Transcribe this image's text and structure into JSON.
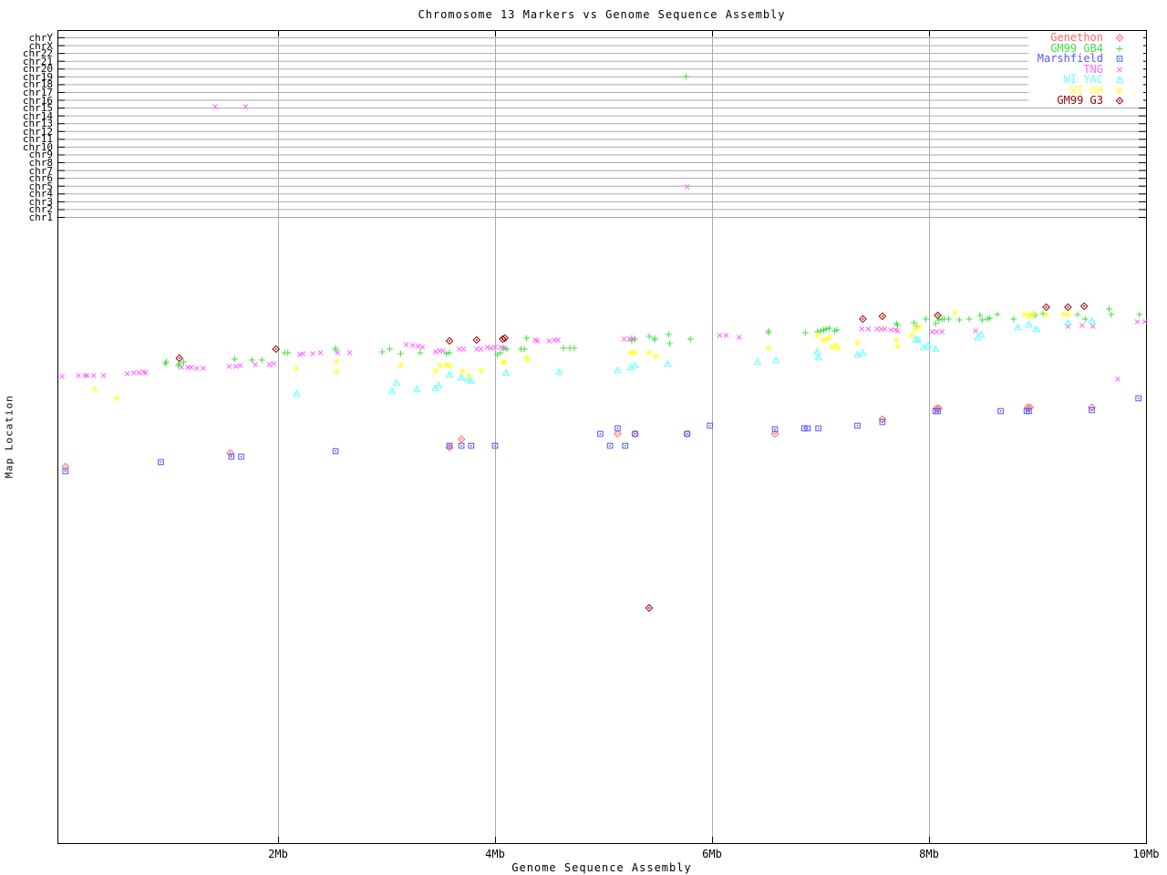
{
  "title": "Chromosome 13 Markers vs Genome Sequence Assembly",
  "x_axis": {
    "title": "Genome Sequence Assembly",
    "tick_labels": [
      "2Mb",
      "4Mb",
      "6Mb",
      "8Mb",
      "10Mb"
    ],
    "tick_positions_mb": [
      2,
      4,
      6,
      8,
      10
    ],
    "gridlines_mb": [
      2,
      4,
      6,
      8
    ],
    "range_mb": [
      0,
      10
    ]
  },
  "y_axis": {
    "title": "Map Location",
    "chromosome_rows": [
      "chrY",
      "chrX",
      "chr22",
      "chr21",
      "chr20",
      "chr19",
      "chr18",
      "chr17",
      "chr16",
      "chr15",
      "chr14",
      "chr13",
      "chr12",
      "chr11",
      "chr10",
      "chr9",
      "chr8",
      "chr7",
      "chr6",
      "chr5",
      "chr4",
      "chr3",
      "chr2",
      "chr1"
    ]
  },
  "colors": {
    "background": "#ffffff",
    "grid": "#aaaaaa",
    "axis": "#000000"
  },
  "chart_data": {
    "type": "scatter",
    "title": "Chromosome 13 Markers vs Genome Sequence Assembly",
    "xlabel": "Genome Sequence Assembly",
    "ylabel": "Map Location",
    "x_units": "Mb",
    "y_units": "vertical pixel row of 960px canvas; rows 41-238 are the chromosome band (chrY..chr1), lower band has no numeric scale printed",
    "xlim_mb": [
      0,
      10
    ],
    "grid": "on",
    "legend_position": "top-right-inside",
    "series": [
      {
        "name": "Genethon",
        "key": "genethon",
        "marker": "open-diamond-dot",
        "color": "#ff6666",
        "points": [
          [
            0.04,
            512
          ],
          [
            1.56,
            497
          ],
          [
            3.58,
            491
          ],
          [
            3.69,
            482
          ],
          [
            5.13,
            476
          ],
          [
            5.29,
            476
          ],
          [
            5.77,
            476
          ],
          [
            6.58,
            476
          ],
          [
            7.57,
            460
          ],
          [
            8.07,
            448
          ],
          [
            8.09,
            448
          ],
          [
            8.91,
            447
          ],
          [
            8.93,
            447
          ],
          [
            9.5,
            447
          ]
        ]
      },
      {
        "name": "GM99 GB4",
        "key": "gm99-gb4",
        "marker": "plus",
        "color": "#44dd44",
        "points": [
          [
            0.96,
            399
          ],
          [
            0.97,
            397
          ],
          [
            1.08,
            401
          ],
          [
            1.09,
            399
          ],
          [
            1.13,
            397
          ],
          [
            1.6,
            394
          ],
          [
            1.76,
            395
          ],
          [
            1.85,
            395
          ],
          [
            2.06,
            387
          ],
          [
            2.09,
            387
          ],
          [
            2.53,
            382
          ],
          [
            2.53,
            384
          ],
          [
            2.96,
            386
          ],
          [
            3.03,
            383
          ],
          [
            3.13,
            388
          ],
          [
            3.31,
            387
          ],
          [
            3.55,
            388
          ],
          [
            3.58,
            387
          ],
          [
            4.02,
            389
          ],
          [
            4.05,
            387
          ],
          [
            4.08,
            382
          ],
          [
            4.11,
            383
          ],
          [
            4.24,
            383
          ],
          [
            4.27,
            383
          ],
          [
            4.29,
            371
          ],
          [
            4.63,
            382
          ],
          [
            4.69,
            382
          ],
          [
            4.73,
            382
          ],
          [
            5.26,
            371
          ],
          [
            5.26,
            374
          ],
          [
            5.29,
            372
          ],
          [
            5.42,
            369
          ],
          [
            5.47,
            371
          ],
          [
            5.47,
            373
          ],
          [
            5.6,
            367
          ],
          [
            5.61,
            377
          ],
          [
            5.76,
            84
          ],
          [
            5.8,
            372
          ],
          [
            6.52,
            363
          ],
          [
            6.52,
            365
          ],
          [
            6.86,
            365
          ],
          [
            6.97,
            364
          ],
          [
            7.0,
            363
          ],
          [
            7.03,
            362
          ],
          [
            7.05,
            361
          ],
          [
            7.08,
            360
          ],
          [
            7.13,
            363
          ],
          [
            7.15,
            362
          ],
          [
            7.7,
            355
          ],
          [
            7.71,
            357
          ],
          [
            7.86,
            354
          ],
          [
            7.89,
            358
          ],
          [
            7.97,
            350
          ],
          [
            8.06,
            355
          ],
          [
            8.09,
            351
          ],
          [
            8.12,
            350
          ],
          [
            8.14,
            350
          ],
          [
            8.18,
            350
          ],
          [
            8.28,
            351
          ],
          [
            8.37,
            350
          ],
          [
            8.47,
            346
          ],
          [
            8.49,
            351
          ],
          [
            8.54,
            350
          ],
          [
            8.56,
            349
          ],
          [
            8.63,
            345
          ],
          [
            8.78,
            350
          ],
          [
            8.96,
            345
          ],
          [
            8.98,
            346
          ],
          [
            9.05,
            344
          ],
          [
            9.37,
            345
          ],
          [
            9.44,
            350
          ],
          [
            9.66,
            339
          ],
          [
            9.68,
            345
          ],
          [
            9.94,
            345
          ]
        ]
      },
      {
        "name": "Marshfield",
        "key": "marshfield",
        "marker": "open-square-dot",
        "color": "#5555ff",
        "points": [
          [
            0.04,
            517
          ],
          [
            0.92,
            507
          ],
          [
            1.57,
            501
          ],
          [
            1.66,
            501
          ],
          [
            2.53,
            495
          ],
          [
            3.58,
            489
          ],
          [
            3.69,
            489
          ],
          [
            3.78,
            489
          ],
          [
            4.0,
            489
          ],
          [
            4.97,
            476
          ],
          [
            5.06,
            489
          ],
          [
            5.13,
            470
          ],
          [
            5.2,
            489
          ],
          [
            5.29,
            476
          ],
          [
            5.77,
            476
          ],
          [
            5.98,
            467
          ],
          [
            6.58,
            471
          ],
          [
            6.85,
            470
          ],
          [
            6.88,
            470
          ],
          [
            6.98,
            470
          ],
          [
            7.34,
            467
          ],
          [
            7.57,
            463
          ],
          [
            8.06,
            451
          ],
          [
            8.08,
            451
          ],
          [
            8.66,
            451
          ],
          [
            8.9,
            451
          ],
          [
            8.92,
            451
          ],
          [
            9.5,
            450
          ],
          [
            9.93,
            437
          ]
        ]
      },
      {
        "name": "TNG",
        "key": "tng",
        "marker": "cross",
        "color": "#ff66ff",
        "points": [
          [
            0.01,
            413
          ],
          [
            0.16,
            412
          ],
          [
            0.22,
            412
          ],
          [
            0.24,
            412
          ],
          [
            0.3,
            412
          ],
          [
            0.39,
            412
          ],
          [
            0.61,
            410
          ],
          [
            0.67,
            409
          ],
          [
            0.72,
            409
          ],
          [
            0.76,
            408
          ],
          [
            0.78,
            409
          ],
          [
            1.11,
            403
          ],
          [
            1.17,
            403
          ],
          [
            1.2,
            403
          ],
          [
            1.25,
            404
          ],
          [
            1.31,
            404
          ],
          [
            1.42,
            117
          ],
          [
            1.55,
            402
          ],
          [
            1.61,
            402
          ],
          [
            1.65,
            401
          ],
          [
            1.7,
            117
          ],
          [
            1.79,
            400
          ],
          [
            1.92,
            400
          ],
          [
            1.96,
            399
          ],
          [
            2.2,
            389
          ],
          [
            2.23,
            388
          ],
          [
            2.32,
            388
          ],
          [
            2.39,
            387
          ],
          [
            2.55,
            387
          ],
          [
            2.66,
            387
          ],
          [
            3.18,
            378
          ],
          [
            3.24,
            379
          ],
          [
            3.29,
            380
          ],
          [
            3.33,
            381
          ],
          [
            3.45,
            386
          ],
          [
            3.49,
            385
          ],
          [
            3.52,
            385
          ],
          [
            3.67,
            383
          ],
          [
            3.71,
            383
          ],
          [
            3.83,
            383
          ],
          [
            3.87,
            383
          ],
          [
            3.93,
            381
          ],
          [
            3.96,
            382
          ],
          [
            4.0,
            381
          ],
          [
            4.05,
            381
          ],
          [
            4.08,
            382
          ],
          [
            4.37,
            373
          ],
          [
            4.39,
            374
          ],
          [
            4.5,
            374
          ],
          [
            4.55,
            373
          ],
          [
            4.58,
            373
          ],
          [
            5.19,
            372
          ],
          [
            5.24,
            372
          ],
          [
            5.27,
            372
          ],
          [
            5.77,
            205
          ],
          [
            6.07,
            368
          ],
          [
            6.13,
            368
          ],
          [
            6.25,
            370
          ],
          [
            7.38,
            361
          ],
          [
            7.44,
            361
          ],
          [
            7.52,
            361
          ],
          [
            7.56,
            361
          ],
          [
            7.59,
            361
          ],
          [
            7.65,
            362
          ],
          [
            7.69,
            362
          ],
          [
            7.71,
            363
          ],
          [
            8.03,
            364
          ],
          [
            8.07,
            364
          ],
          [
            8.12,
            364
          ],
          [
            8.43,
            363
          ],
          [
            9.28,
            358
          ],
          [
            9.41,
            357
          ],
          [
            9.51,
            358
          ],
          [
            9.74,
            416
          ],
          [
            9.92,
            353
          ],
          [
            9.99,
            353
          ]
        ]
      },
      {
        "name": "WI YAC",
        "key": "wi-yac",
        "marker": "open-triangle-dot",
        "color": "#66ffff",
        "points": [
          [
            2.17,
            432
          ],
          [
            3.05,
            429
          ],
          [
            3.09,
            420
          ],
          [
            3.28,
            427
          ],
          [
            3.45,
            426
          ],
          [
            3.48,
            423
          ],
          [
            3.58,
            411
          ],
          [
            3.69,
            414
          ],
          [
            3.75,
            416
          ],
          [
            3.78,
            418
          ],
          [
            4.1,
            409
          ],
          [
            4.59,
            408
          ],
          [
            5.13,
            406
          ],
          [
            5.25,
            403
          ],
          [
            5.29,
            401
          ],
          [
            5.59,
            399
          ],
          [
            6.42,
            397
          ],
          [
            6.59,
            395
          ],
          [
            6.97,
            386
          ],
          [
            6.98,
            392
          ],
          [
            7.34,
            389
          ],
          [
            7.39,
            387
          ],
          [
            7.88,
            372
          ],
          [
            7.9,
            373
          ],
          [
            7.95,
            381
          ],
          [
            7.99,
            379
          ],
          [
            8.06,
            383
          ],
          [
            8.45,
            370
          ],
          [
            8.48,
            367
          ],
          [
            8.82,
            359
          ],
          [
            8.92,
            356
          ],
          [
            8.99,
            361
          ],
          [
            9.28,
            354
          ],
          [
            9.5,
            352
          ]
        ]
      },
      {
        "name": "WI RH",
        "key": "wi-rh",
        "marker": "asterisk",
        "color": "#ffff44",
        "points": [
          [
            0.31,
            427
          ],
          [
            0.51,
            437
          ],
          [
            2.17,
            404
          ],
          [
            2.54,
            397
          ],
          [
            2.54,
            408
          ],
          [
            3.13,
            401
          ],
          [
            3.45,
            407
          ],
          [
            3.49,
            401
          ],
          [
            3.55,
            400
          ],
          [
            3.58,
            401
          ],
          [
            3.7,
            407
          ],
          [
            3.76,
            412
          ],
          [
            3.87,
            407
          ],
          [
            4.08,
            397
          ],
          [
            4.08,
            398
          ],
          [
            4.29,
            392
          ],
          [
            4.3,
            394
          ],
          [
            5.25,
            387
          ],
          [
            5.27,
            387
          ],
          [
            5.29,
            387
          ],
          [
            5.42,
            387
          ],
          [
            5.48,
            391
          ],
          [
            6.52,
            382
          ],
          [
            6.97,
            368
          ],
          [
            7.02,
            373
          ],
          [
            7.06,
            372
          ],
          [
            7.08,
            371
          ],
          [
            7.11,
            381
          ],
          [
            7.14,
            379
          ],
          [
            7.16,
            382
          ],
          [
            7.34,
            376
          ],
          [
            7.7,
            373
          ],
          [
            7.71,
            380
          ],
          [
            7.84,
            368
          ],
          [
            7.87,
            361
          ],
          [
            7.91,
            359
          ],
          [
            8.24,
            343
          ],
          [
            8.88,
            345
          ],
          [
            8.92,
            346
          ],
          [
            8.93,
            347
          ],
          [
            8.96,
            344
          ],
          [
            9.08,
            345
          ],
          [
            9.24,
            345
          ],
          [
            9.28,
            345
          ]
        ]
      },
      {
        "name": "GM99 G3",
        "key": "gm99-g3",
        "marker": "open-diamond-dot",
        "color": "#990000",
        "points": [
          [
            1.09,
            393
          ],
          [
            1.98,
            383
          ],
          [
            3.58,
            374
          ],
          [
            3.83,
            373
          ],
          [
            4.07,
            372
          ],
          [
            4.09,
            371
          ],
          [
            5.42,
            667
          ],
          [
            7.39,
            350
          ],
          [
            7.57,
            347
          ],
          [
            8.08,
            346
          ],
          [
            9.08,
            337
          ],
          [
            9.28,
            337
          ],
          [
            9.43,
            336
          ]
        ]
      }
    ]
  }
}
